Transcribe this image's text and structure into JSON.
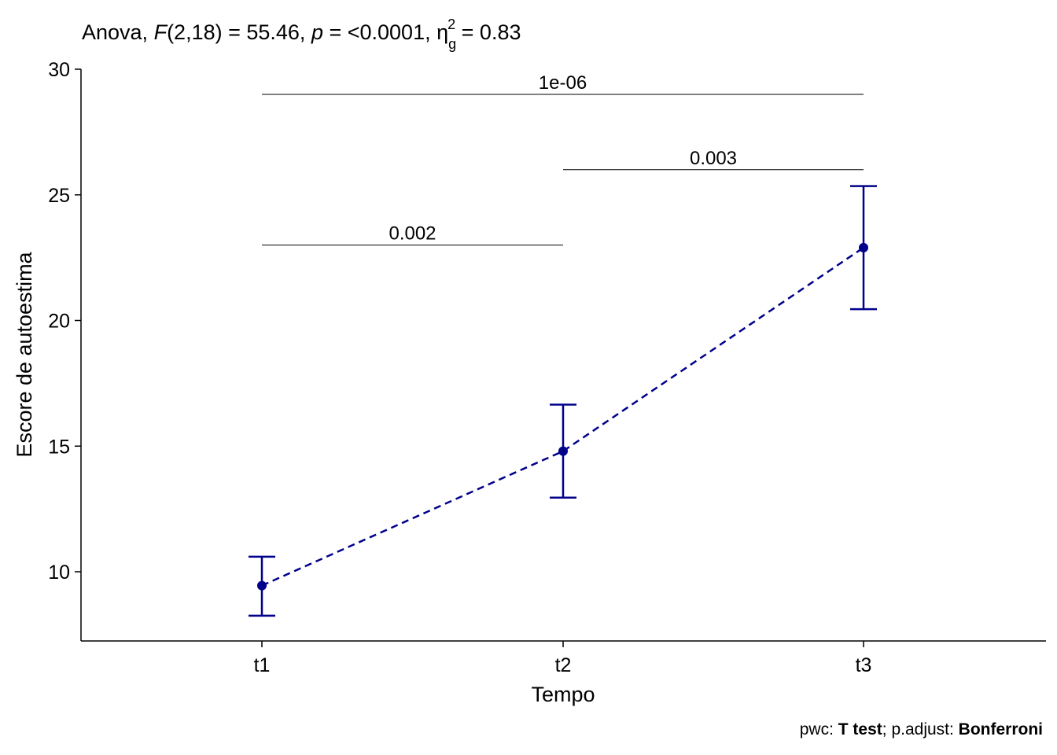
{
  "chart_data": {
    "type": "line",
    "title_parts": {
      "prefix": "Anova, ",
      "F_symbol": "F",
      "df": "(2,18) = 55.46, ",
      "p_symbol": "p",
      "p_text": " = <0.0001, ",
      "eta_symbol": "η",
      "eta_sub": "g",
      "eta_sup": "2",
      "eta_value": " = 0.83"
    },
    "xlabel": "Tempo",
    "ylabel": "Escore de autoestima",
    "categories": [
      "t1",
      "t2",
      "t3"
    ],
    "series": [
      {
        "values": [
          9.45,
          14.8,
          22.9
        ],
        "err_low": [
          8.25,
          12.95,
          20.45
        ],
        "err_high": [
          10.6,
          16.65,
          25.35
        ],
        "line_style": "dashed",
        "color": "#00008B"
      }
    ],
    "ylim": [
      7.2,
      30
    ],
    "yticks": [
      10,
      15,
      20,
      25,
      30
    ],
    "grid": false,
    "legend": "none",
    "comparisons": [
      {
        "from": "t1",
        "to": "t2",
        "y": 23.0,
        "label": "0.002"
      },
      {
        "from": "t2",
        "to": "t3",
        "y": 26.0,
        "label": "0.003"
      },
      {
        "from": "t1",
        "to": "t3",
        "y": 29.0,
        "label": "1e-06"
      }
    ],
    "caption_parts": [
      "pwc: ",
      "T test",
      "; p.adjust: ",
      "Bonferroni"
    ]
  }
}
